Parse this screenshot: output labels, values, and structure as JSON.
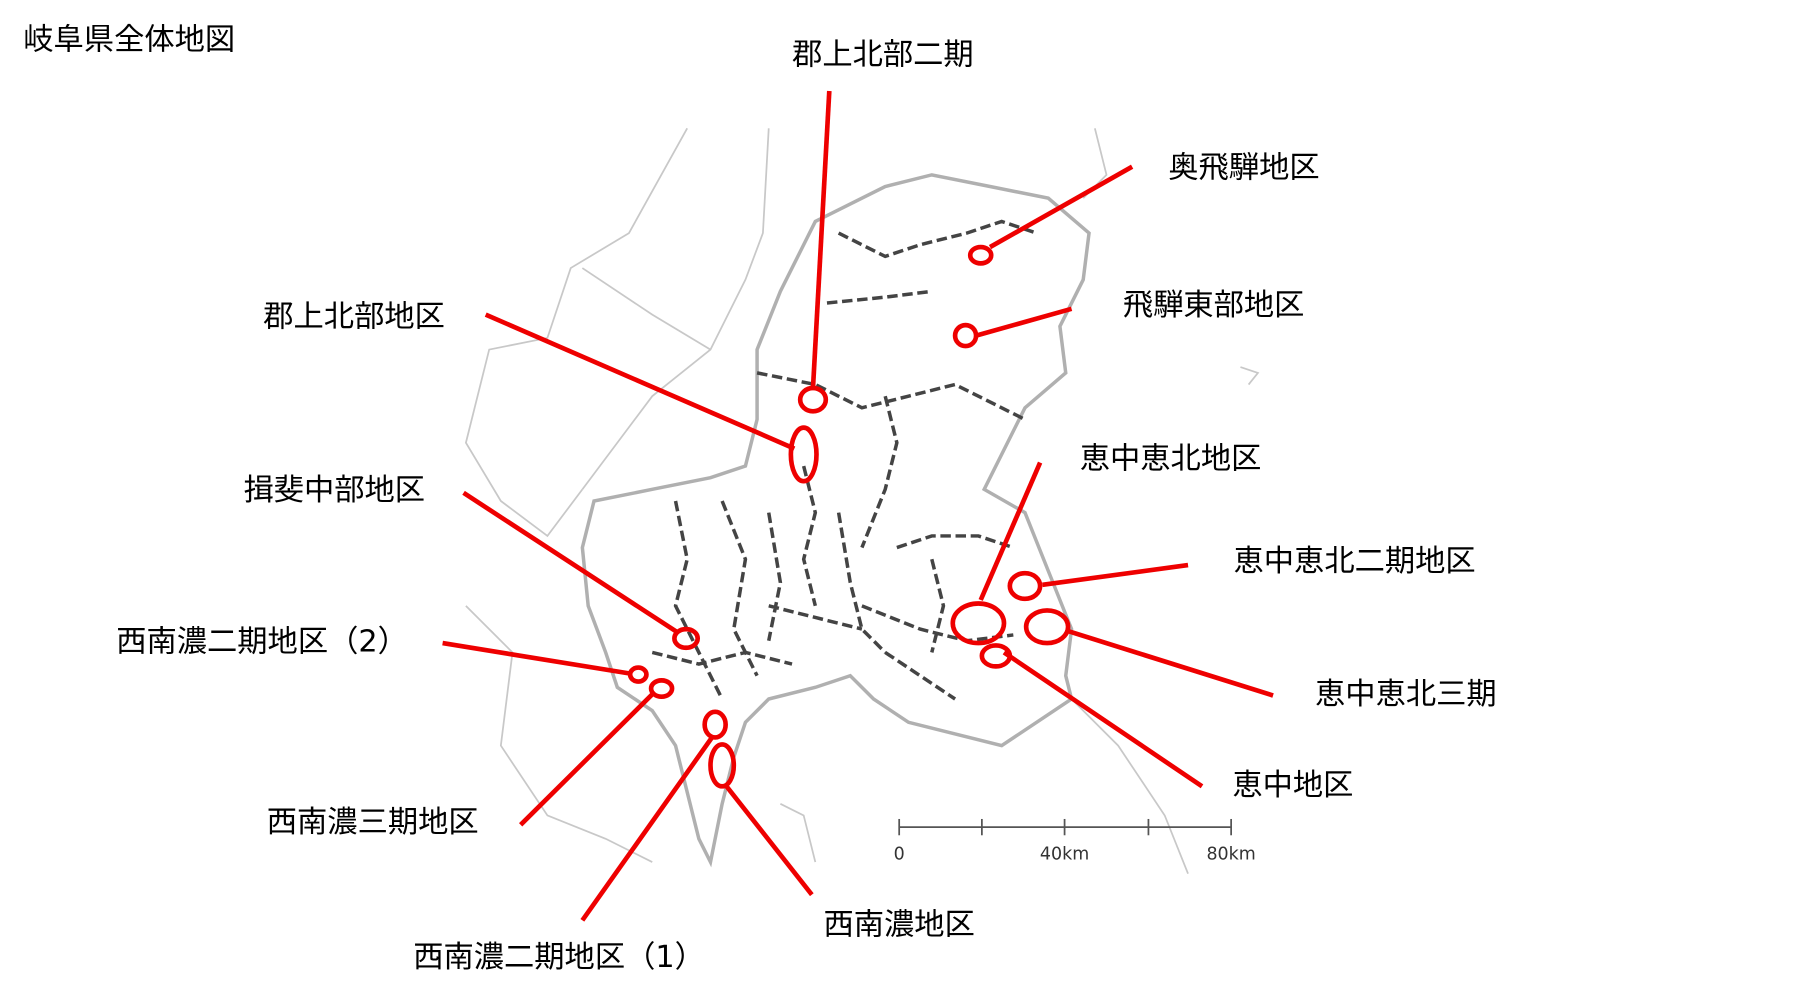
{
  "title": "岐阜県全体地図",
  "areas": [
    {
      "label": "郡上北部二期"
    },
    {
      "label": "奥飛騨地区"
    },
    {
      "label": "飛騨東部地区"
    },
    {
      "label": "郡上北部地区"
    },
    {
      "label": "揖斐中部地区"
    },
    {
      "label": "恵中恵北地区"
    },
    {
      "label": "恵中恵北二期地区"
    },
    {
      "label": "西南濃二期地区（2）"
    },
    {
      "label": "恵中恵北三期"
    },
    {
      "label": "恵中地区"
    },
    {
      "label": "西南濃三期地区"
    },
    {
      "label": "西南濃二期地区（1）"
    },
    {
      "label": "西南濃地区"
    }
  ],
  "scale_bar": {
    "labels": [
      "0",
      "40km",
      "80km"
    ]
  }
}
